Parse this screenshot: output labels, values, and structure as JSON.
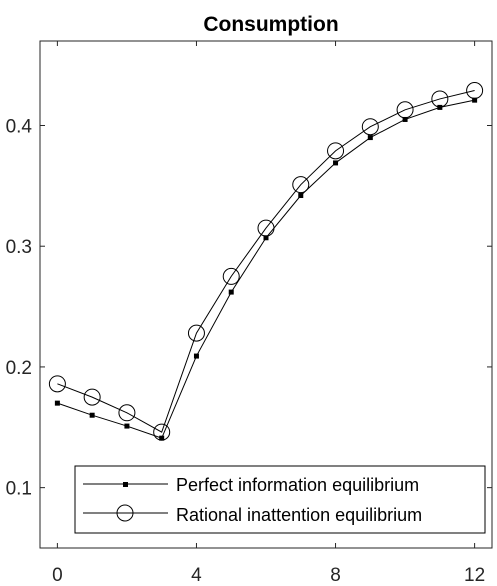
{
  "chart_data": {
    "type": "line",
    "title": "Consumption",
    "xlabel": "",
    "ylabel": "",
    "xlim": [
      -0.5,
      12.5
    ],
    "ylim": [
      0.05,
      0.47
    ],
    "xticks": [
      0,
      4,
      8,
      12
    ],
    "yticks": [
      0.1,
      0.2,
      0.3,
      0.4
    ],
    "xtick_labels": [
      "0",
      "4",
      "8",
      "12"
    ],
    "ytick_labels": [
      "0.1",
      "0.2",
      "0.3",
      "0.4"
    ],
    "grid": false,
    "legend_position": "bottom",
    "x": [
      0,
      1,
      2,
      3,
      4,
      5,
      6,
      7,
      8,
      9,
      10,
      11,
      12
    ],
    "series": [
      {
        "name": "Perfect information equilibrium",
        "marker": "square",
        "color": "#000000",
        "values": [
          0.17,
          0.16,
          0.151,
          0.141,
          0.209,
          0.262,
          0.307,
          0.342,
          0.369,
          0.39,
          0.405,
          0.415,
          0.421
        ]
      },
      {
        "name": "Rational inattention equilibrium",
        "marker": "circle",
        "color": "#000000",
        "values": [
          0.186,
          0.175,
          0.162,
          0.146,
          0.228,
          0.275,
          0.315,
          0.351,
          0.379,
          0.399,
          0.413,
          0.422,
          0.429
        ]
      }
    ]
  }
}
